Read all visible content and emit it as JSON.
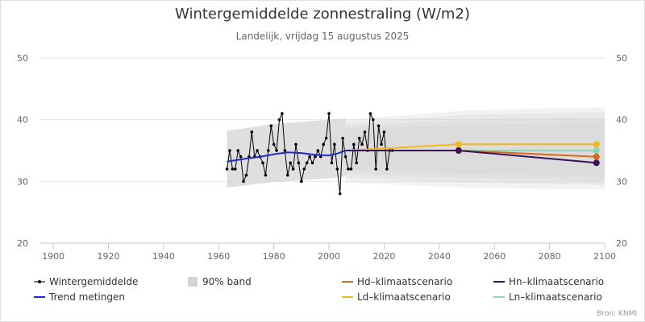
{
  "title": "Wintergemiddelde zonnestraling (W/m2)",
  "subtitle": "Landelijk, vrijdag 15 augustus 2025",
  "credits": "Bron: KNMI",
  "colors": {
    "measurements": "#000000",
    "trend": "#1c2bc9",
    "band": "#d4d4d4",
    "hd": "#d4691a",
    "hn": "#3b1358",
    "ld": "#f2b81f",
    "ln": "#8fd6b4"
  },
  "chart_data": {
    "type": "line",
    "xlim": [
      1895,
      2100
    ],
    "ylim": [
      20,
      50
    ],
    "x_ticks": [
      1900,
      1920,
      1940,
      1960,
      1980,
      2000,
      2020,
      2040,
      2060,
      2080,
      2100
    ],
    "y_ticks": [
      20,
      30,
      40,
      50
    ],
    "grid": true,
    "legend_position": "bottom",
    "legend": [
      {
        "key": "measurements",
        "label": "Wintergemiddelde"
      },
      {
        "key": "band",
        "label": "90% band"
      },
      {
        "key": "hd",
        "label": "Hd–klimaatscenario"
      },
      {
        "key": "hn",
        "label": "Hn–klimaatscenario"
      },
      {
        "key": "trend",
        "label": "Trend metingen"
      },
      {
        "key": "ld",
        "label": "Ld–klimaatscenario"
      },
      {
        "key": "ln",
        "label": "Ln–klimaatscenario"
      }
    ],
    "measurements": {
      "x": [
        1963,
        1964,
        1965,
        1966,
        1967,
        1968,
        1969,
        1970,
        1971,
        1972,
        1973,
        1974,
        1975,
        1976,
        1977,
        1978,
        1979,
        1980,
        1981,
        1982,
        1983,
        1984,
        1985,
        1986,
        1987,
        1988,
        1989,
        1990,
        1991,
        1992,
        1993,
        1994,
        1995,
        1996,
        1997,
        1998,
        1999,
        2000,
        2001,
        2002,
        2003,
        2004,
        2005,
        2006,
        2007,
        2008,
        2009,
        2010,
        2011,
        2012,
        2013,
        2014,
        2015,
        2016,
        2017,
        2018,
        2019,
        2020,
        2021,
        2022,
        2023
      ],
      "y": [
        32,
        35,
        32,
        32,
        35,
        34,
        30,
        31,
        34,
        38,
        34,
        35,
        34,
        33,
        31,
        35,
        39,
        36,
        35,
        40,
        41,
        35,
        31,
        33,
        32,
        36,
        33,
        30,
        32,
        33,
        34,
        33,
        34,
        35,
        34,
        36,
        37,
        41,
        33,
        36,
        32,
        28,
        37,
        34,
        32,
        32,
        36,
        33,
        37,
        36,
        38,
        35,
        41,
        40,
        32,
        39,
        36,
        38,
        32,
        35,
        35
      ],
      "end_year": 2023
    },
    "trend": {
      "x": [
        1963,
        1970,
        1975,
        1980,
        1985,
        1990,
        1995,
        2000,
        2003,
        2006
      ],
      "y": [
        33.2,
        33.7,
        34.0,
        34.4,
        34.7,
        34.6,
        34.3,
        34.2,
        34.5,
        35.0
      ]
    },
    "historic_band": {
      "x": [
        1963,
        1980,
        2000,
        2006
      ],
      "upper": [
        38.2,
        39.3,
        40.0,
        40.2
      ],
      "lower": [
        29.0,
        29.9,
        30.5,
        30.8
      ]
    },
    "scenario_start": {
      "x": 2006,
      "y": 35.0
    },
    "scenario_bands": [
      {
        "x": [
          2006,
          2050,
          2075,
          2100
        ],
        "upper": [
          40.0,
          41.5,
          41.8,
          42.0
        ],
        "lower": [
          29.8,
          29.0,
          28.8,
          28.7
        ]
      },
      {
        "x": [
          2006,
          2050,
          2075,
          2100
        ],
        "upper": [
          39.5,
          40.8,
          41.0,
          41.2
        ],
        "lower": [
          30.5,
          29.8,
          29.6,
          29.4
        ]
      },
      {
        "x": [
          2006,
          2050,
          2075,
          2100
        ],
        "upper": [
          39.0,
          40.0,
          40.2,
          40.3
        ],
        "lower": [
          31.2,
          30.5,
          30.3,
          30.0
        ]
      },
      {
        "x": [
          2006,
          2050,
          2075,
          2100
        ],
        "upper": [
          38.5,
          39.2,
          39.4,
          39.5
        ],
        "lower": [
          31.8,
          31.2,
          31.0,
          30.8
        ]
      }
    ],
    "scenarios": [
      {
        "key": "ld",
        "name": "Ld–klimaatscenario",
        "x": [
          2006,
          2047,
          2097
        ],
        "y": [
          35.0,
          36.0,
          36.0
        ]
      },
      {
        "key": "hd",
        "name": "Hd–klimaatscenario",
        "x": [
          2006,
          2047,
          2097
        ],
        "y": [
          35.0,
          35.0,
          34.0
        ]
      },
      {
        "key": "hn",
        "name": "Hn–klimaatscenario",
        "x": [
          2006,
          2047,
          2097
        ],
        "y": [
          35.0,
          35.0,
          33.0
        ]
      },
      {
        "key": "ln",
        "name": "Ln–klimaatscenario",
        "x": [
          2006,
          2047,
          2097
        ],
        "y": [
          35.0,
          35.0,
          35.0
        ]
      }
    ]
  }
}
